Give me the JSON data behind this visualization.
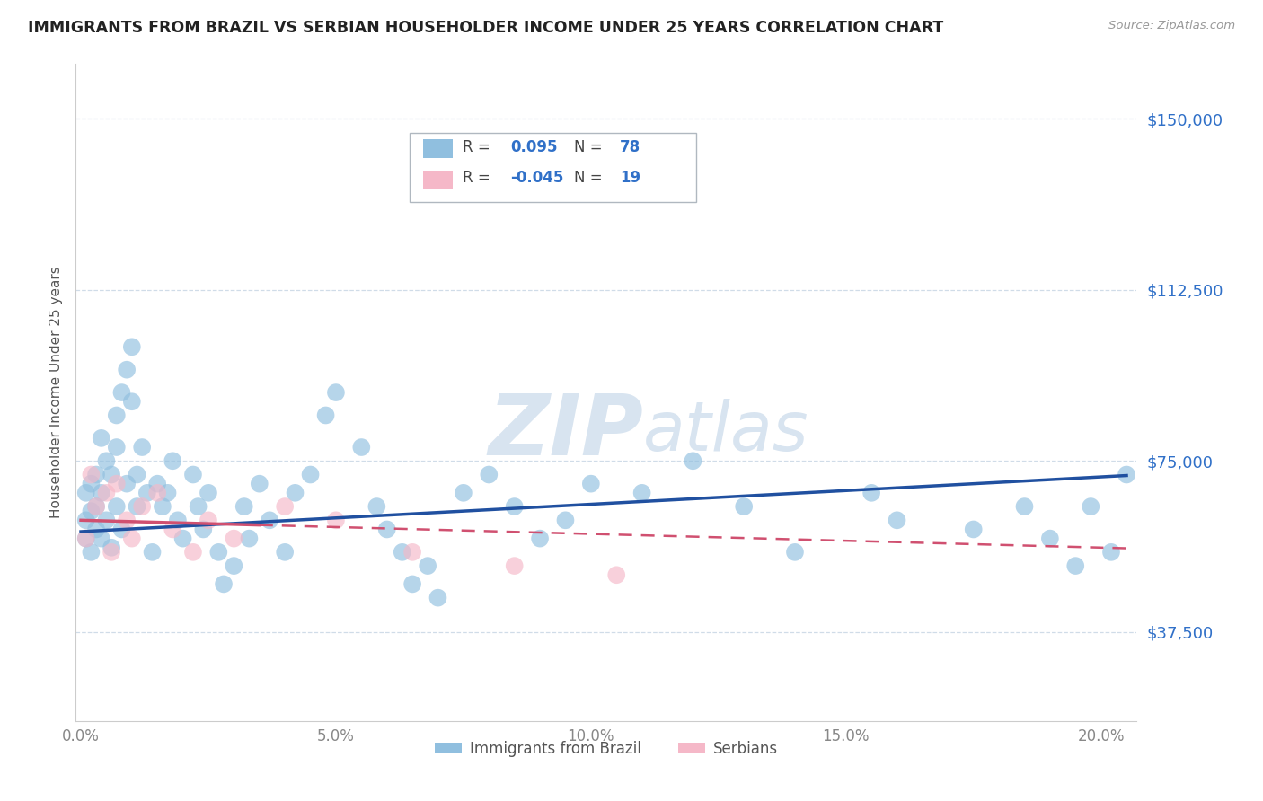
{
  "title": "IMMIGRANTS FROM BRAZIL VS SERBIAN HOUSEHOLDER INCOME UNDER 25 YEARS CORRELATION CHART",
  "source": "Source: ZipAtlas.com",
  "ylabel": "Householder Income Under 25 years",
  "xlabel_ticks": [
    "0.0%",
    "5.0%",
    "10.0%",
    "15.0%",
    "20.0%"
  ],
  "xlabel_vals": [
    0.0,
    0.05,
    0.1,
    0.15,
    0.2
  ],
  "ytick_labels": [
    "$37,500",
    "$75,000",
    "$112,500",
    "$150,000"
  ],
  "ytick_vals": [
    37500,
    75000,
    112500,
    150000
  ],
  "ylim": [
    18000,
    162000
  ],
  "xlim": [
    -0.001,
    0.207
  ],
  "brazil_R": 0.095,
  "brazil_N": 78,
  "serbian_R": -0.045,
  "serbian_N": 19,
  "brazil_color": "#90bfdf",
  "serbian_color": "#f5b8c8",
  "brazil_line_color": "#2050a0",
  "serbian_line_color": "#d05070",
  "r_label_color": "#3070c8",
  "watermark_color": "#d8e4f0",
  "background_color": "#ffffff",
  "grid_color": "#d0dce8",
  "title_color": "#222222",
  "brazil_line_intercept": 59500,
  "brazil_line_slope": 60000,
  "serbian_line_intercept": 62000,
  "serbian_line_slope": -30000,
  "brazil_x": [
    0.001,
    0.001,
    0.001,
    0.002,
    0.002,
    0.002,
    0.003,
    0.003,
    0.003,
    0.004,
    0.004,
    0.004,
    0.005,
    0.005,
    0.006,
    0.006,
    0.007,
    0.007,
    0.007,
    0.008,
    0.008,
    0.009,
    0.009,
    0.01,
    0.01,
    0.011,
    0.011,
    0.012,
    0.013,
    0.014,
    0.015,
    0.016,
    0.017,
    0.018,
    0.019,
    0.02,
    0.022,
    0.023,
    0.024,
    0.025,
    0.027,
    0.028,
    0.03,
    0.032,
    0.033,
    0.035,
    0.037,
    0.04,
    0.042,
    0.045,
    0.048,
    0.05,
    0.055,
    0.058,
    0.06,
    0.063,
    0.065,
    0.068,
    0.07,
    0.075,
    0.08,
    0.085,
    0.09,
    0.095,
    0.1,
    0.11,
    0.12,
    0.13,
    0.14,
    0.155,
    0.16,
    0.175,
    0.185,
    0.19,
    0.195,
    0.198,
    0.202,
    0.205
  ],
  "brazil_y": [
    62000,
    58000,
    68000,
    55000,
    70000,
    64000,
    72000,
    60000,
    65000,
    58000,
    80000,
    68000,
    75000,
    62000,
    72000,
    56000,
    85000,
    65000,
    78000,
    60000,
    90000,
    70000,
    95000,
    100000,
    88000,
    72000,
    65000,
    78000,
    68000,
    55000,
    70000,
    65000,
    68000,
    75000,
    62000,
    58000,
    72000,
    65000,
    60000,
    68000,
    55000,
    48000,
    52000,
    65000,
    58000,
    70000,
    62000,
    55000,
    68000,
    72000,
    85000,
    90000,
    78000,
    65000,
    60000,
    55000,
    48000,
    52000,
    45000,
    68000,
    72000,
    65000,
    58000,
    62000,
    70000,
    68000,
    75000,
    65000,
    55000,
    68000,
    62000,
    60000,
    65000,
    58000,
    52000,
    65000,
    55000,
    72000
  ],
  "serbian_x": [
    0.001,
    0.002,
    0.003,
    0.005,
    0.006,
    0.007,
    0.009,
    0.01,
    0.012,
    0.015,
    0.018,
    0.022,
    0.025,
    0.03,
    0.04,
    0.05,
    0.065,
    0.085,
    0.105
  ],
  "serbian_y": [
    58000,
    72000,
    65000,
    68000,
    55000,
    70000,
    62000,
    58000,
    65000,
    68000,
    60000,
    55000,
    62000,
    58000,
    65000,
    62000,
    55000,
    52000,
    50000
  ]
}
